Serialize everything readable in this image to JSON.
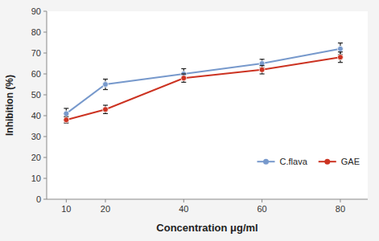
{
  "chart_data": {
    "type": "line",
    "xlabel": "Concentration μg/ml",
    "ylabel": "Inhibition (%)",
    "x": [
      10,
      20,
      40,
      60,
      80
    ],
    "xlim": [
      5,
      87
    ],
    "xticks": [
      10,
      20,
      40,
      60,
      80
    ],
    "ylim": [
      0,
      90
    ],
    "yticks": [
      0,
      10,
      20,
      30,
      40,
      50,
      60,
      70,
      80,
      90
    ],
    "grid": false,
    "legend": "lower right",
    "series": [
      {
        "name": "C.flava",
        "color": "#7799CC",
        "marker": "circle",
        "line_style": "solid",
        "values": [
          41,
          55,
          60,
          65,
          72
        ],
        "errors": [
          2.5,
          2.5,
          2.5,
          2.0,
          2.8
        ]
      },
      {
        "name": "GAE",
        "color": "#CC3322",
        "marker": "circle",
        "line_style": "solid",
        "values": [
          38,
          43,
          58,
          62,
          68
        ],
        "errors": [
          1.5,
          2.0,
          2.0,
          2.0,
          2.5
        ]
      }
    ]
  }
}
